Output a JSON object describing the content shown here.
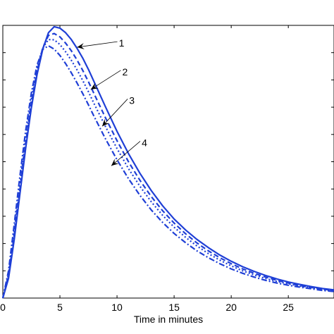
{
  "chart_data": {
    "type": "line",
    "title": "",
    "xlabel": "Time in minutes",
    "ylabel": "",
    "xlim": [
      0,
      29
    ],
    "ylim": [
      0,
      1.0
    ],
    "x_ticks": [
      0,
      5,
      10,
      15,
      20,
      25
    ],
    "x_tick_labels": [
      "0",
      "5",
      "10",
      "15",
      "20",
      "25"
    ],
    "y_tick_count": 10,
    "grid": false,
    "line_color": "#1f3fd6",
    "series": [
      {
        "style": "solid",
        "x": [
          0,
          0.5,
          1,
          1.5,
          2,
          2.5,
          3,
          3.5,
          4,
          4.5,
          5,
          5.5,
          6,
          6.5,
          7,
          7.5,
          8,
          9,
          10,
          11,
          12,
          13,
          14,
          15,
          16,
          17,
          18,
          19,
          20,
          21,
          22,
          23,
          24,
          25,
          26,
          27,
          28,
          29
        ],
        "y": [
          0,
          0.072,
          0.215,
          0.383,
          0.549,
          0.698,
          0.82,
          0.913,
          0.973,
          0.995,
          0.99,
          0.973,
          0.948,
          0.916,
          0.88,
          0.838,
          0.792,
          0.7,
          0.611,
          0.53,
          0.458,
          0.394,
          0.338,
          0.29,
          0.25,
          0.215,
          0.185,
          0.158,
          0.135,
          0.115,
          0.098,
          0.083,
          0.07,
          0.059,
          0.05,
          0.042,
          0.035,
          0.03
        ]
      },
      {
        "style": "dashed",
        "x": [
          0,
          0.5,
          1,
          1.5,
          2,
          2.5,
          3,
          3.5,
          4,
          4.5,
          5,
          5.5,
          6,
          6.5,
          7,
          7.5,
          8,
          9,
          10,
          11,
          12,
          13,
          14,
          15,
          16,
          17,
          18,
          19,
          20,
          21,
          22,
          23,
          24,
          25,
          26,
          27,
          28,
          29
        ],
        "y": [
          0,
          0.08,
          0.23,
          0.4,
          0.568,
          0.715,
          0.833,
          0.918,
          0.963,
          0.97,
          0.958,
          0.935,
          0.907,
          0.873,
          0.835,
          0.793,
          0.748,
          0.66,
          0.577,
          0.5,
          0.432,
          0.372,
          0.32,
          0.275,
          0.236,
          0.202,
          0.173,
          0.148,
          0.126,
          0.107,
          0.091,
          0.077,
          0.065,
          0.055,
          0.046,
          0.039,
          0.033,
          0.028
        ]
      },
      {
        "style": "dotted",
        "x": [
          0,
          0.5,
          1,
          1.5,
          2,
          2.5,
          3,
          3.5,
          4,
          4.5,
          5,
          5.5,
          6,
          6.5,
          7,
          7.5,
          8,
          9,
          10,
          11,
          12,
          13,
          14,
          15,
          16,
          17,
          18,
          19,
          20,
          21,
          22,
          23,
          24,
          25,
          26,
          27,
          28,
          29
        ],
        "y": [
          0,
          0.088,
          0.245,
          0.418,
          0.585,
          0.73,
          0.843,
          0.917,
          0.948,
          0.947,
          0.93,
          0.903,
          0.872,
          0.837,
          0.798,
          0.756,
          0.712,
          0.628,
          0.548,
          0.475,
          0.41,
          0.353,
          0.303,
          0.26,
          0.223,
          0.191,
          0.163,
          0.139,
          0.118,
          0.1,
          0.085,
          0.072,
          0.061,
          0.052,
          0.044,
          0.037,
          0.031,
          0.026
        ]
      },
      {
        "style": "dash-dot",
        "x": [
          0,
          0.5,
          1,
          1.5,
          2,
          2.5,
          3,
          3.5,
          4,
          4.5,
          5,
          5.5,
          6,
          6.5,
          7,
          7.5,
          8,
          9,
          10,
          11,
          12,
          13,
          14,
          15,
          16,
          17,
          18,
          19,
          20,
          21,
          22,
          23,
          24,
          25,
          26,
          27,
          28,
          29
        ],
        "y": [
          0,
          0.1,
          0.27,
          0.448,
          0.613,
          0.752,
          0.855,
          0.912,
          0.925,
          0.913,
          0.89,
          0.86,
          0.826,
          0.789,
          0.75,
          0.708,
          0.665,
          0.583,
          0.507,
          0.438,
          0.377,
          0.323,
          0.277,
          0.237,
          0.203,
          0.173,
          0.148,
          0.126,
          0.107,
          0.091,
          0.077,
          0.065,
          0.055,
          0.047,
          0.04,
          0.034,
          0.028,
          0.024
        ]
      }
    ],
    "annotations": [
      {
        "label": "1",
        "x": 6.5,
        "y": 0.92,
        "text_x": 10.4,
        "text_y": 0.935
      },
      {
        "label": "2",
        "x": 7.7,
        "y": 0.765,
        "text_x": 10.7,
        "text_y": 0.83
      },
      {
        "label": "3",
        "x": 8.7,
        "y": 0.63,
        "text_x": 11.3,
        "text_y": 0.725
      },
      {
        "label": "4",
        "x": 9.5,
        "y": 0.485,
        "text_x": 12.4,
        "text_y": 0.57
      }
    ]
  }
}
